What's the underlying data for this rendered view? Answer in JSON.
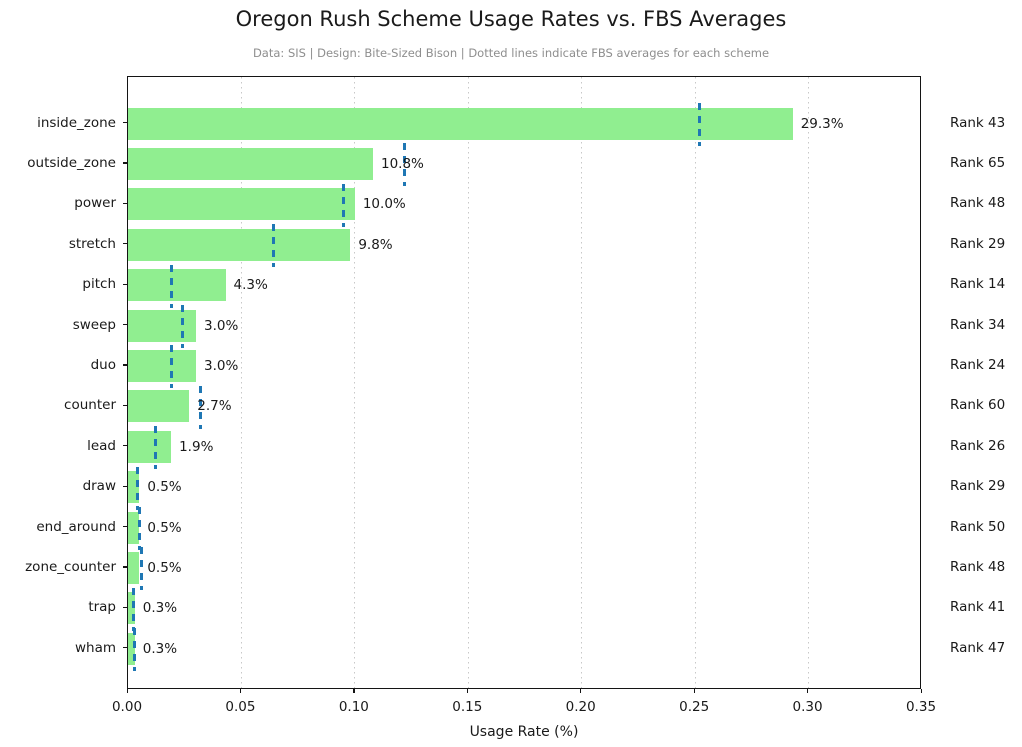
{
  "title": "Oregon Rush Scheme Usage Rates vs. FBS Averages",
  "subtitle": "Data: SIS | Design: Bite-Sized Bison | Dotted lines indicate FBS averages for each scheme",
  "chart_data": {
    "type": "bar",
    "orientation": "horizontal",
    "title": "Oregon Rush Scheme Usage Rates vs. FBS Averages",
    "subtitle": "Data: SIS | Design: Bite-Sized Bison | Dotted lines indicate FBS averages for each scheme",
    "xlabel": "Usage Rate (%)",
    "xlim": [
      0,
      0.35
    ],
    "x_ticks": [
      "0.00",
      "0.05",
      "0.10",
      "0.15",
      "0.20",
      "0.25",
      "0.30",
      "0.35"
    ],
    "grid": "vertical-dotted",
    "legend": "none",
    "categories": [
      "inside_zone",
      "outside_zone",
      "power",
      "stretch",
      "pitch",
      "sweep",
      "duo",
      "counter",
      "lead",
      "draw",
      "end_around",
      "zone_counter",
      "trap",
      "wham"
    ],
    "values": [
      0.293,
      0.108,
      0.1,
      0.098,
      0.043,
      0.03,
      0.03,
      0.027,
      0.019,
      0.005,
      0.005,
      0.005,
      0.003,
      0.003
    ],
    "value_labels": [
      "29.3%",
      "10.8%",
      "10.0%",
      "9.8%",
      "4.3%",
      "3.0%",
      "3.0%",
      "2.7%",
      "1.9%",
      "0.5%",
      "0.5%",
      "0.5%",
      "0.3%",
      "0.3%"
    ],
    "fbs_averages": [
      0.252,
      0.122,
      0.095,
      0.064,
      0.019,
      0.024,
      0.019,
      0.032,
      0.012,
      0.004,
      0.005,
      0.006,
      0.0025,
      0.003
    ],
    "ranks": [
      "Rank 43",
      "Rank 65",
      "Rank 48",
      "Rank 29",
      "Rank 14",
      "Rank 34",
      "Rank 24",
      "Rank 60",
      "Rank 26",
      "Rank 29",
      "Rank 50",
      "Rank 48",
      "Rank 41",
      "Rank 47"
    ],
    "bar_color": "#90ee90",
    "fbs_line_color": "#1f77b4",
    "grid_color": "#c8c8c8"
  }
}
